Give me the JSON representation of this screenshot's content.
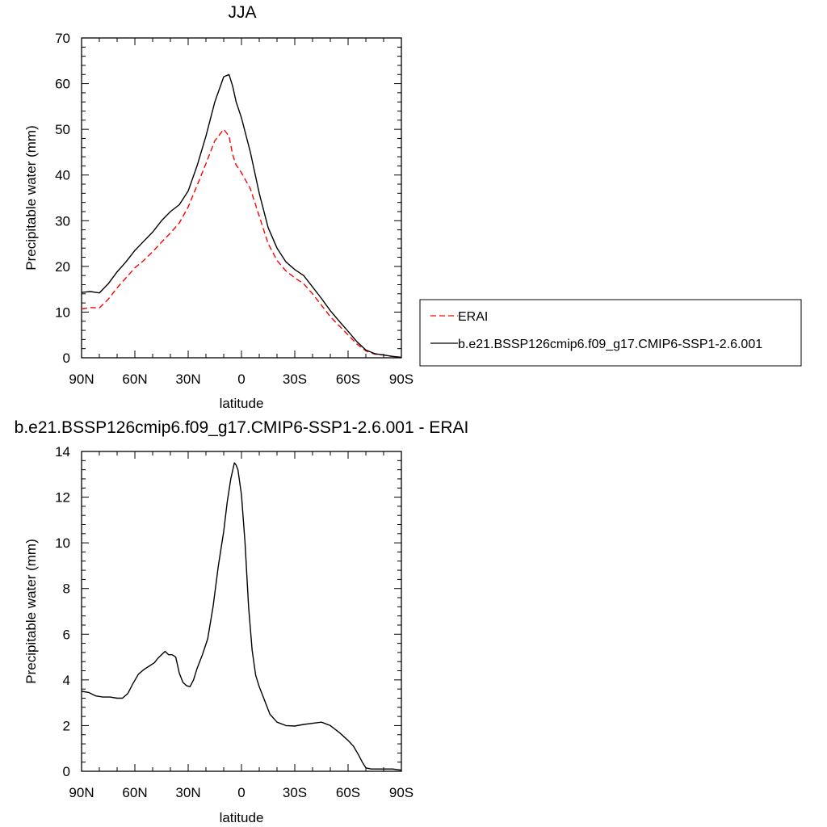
{
  "chart_data": [
    {
      "type": "line",
      "title": "JJA",
      "xlabel": "latitude",
      "ylabel": "Precipitable water (mm)",
      "xlim": [
        90,
        -90
      ],
      "ylim": [
        0,
        70
      ],
      "x_ticks": [
        90,
        60,
        30,
        0,
        -30,
        -60,
        -90
      ],
      "x_tick_labels": [
        "90N",
        "60N",
        "30N",
        "0",
        "30S",
        "60S",
        "90S"
      ],
      "y_ticks": [
        0,
        10,
        20,
        30,
        40,
        50,
        60,
        70
      ],
      "y_tick_labels": [
        "0",
        "10",
        "20",
        "30",
        "40",
        "50",
        "60",
        "70"
      ],
      "grid": false,
      "legend": {
        "position": "right",
        "entries": [
          {
            "name": "ERAI",
            "color": "#ff0000",
            "dash": "dashed"
          },
          {
            "name": "b.e21.BSSP126cmip6.f09_g17.CMIP6-SSP1-2.6.001",
            "color": "#000000",
            "dash": "solid"
          }
        ]
      },
      "series": [
        {
          "name": "ERAI",
          "color": "#ff0000",
          "dash": "dashed",
          "x": [
            90,
            85,
            80,
            75,
            70,
            65,
            60,
            55,
            50,
            45,
            40,
            35,
            30,
            25,
            20,
            15,
            10,
            7,
            5,
            3,
            0,
            -5,
            -10,
            -15,
            -20,
            -25,
            -30,
            -35,
            -40,
            -45,
            -50,
            -55,
            -60,
            -65,
            -70,
            -75,
            -80,
            -85,
            -90
          ],
          "values": [
            10.7,
            11.0,
            10.9,
            12.8,
            15.3,
            17.5,
            19.7,
            21.3,
            23.2,
            25.3,
            27.3,
            29.5,
            33.0,
            37.7,
            42.5,
            47.5,
            50.0,
            48.5,
            44.5,
            42.2,
            40.5,
            37.0,
            31.0,
            25.0,
            21.3,
            19.0,
            17.5,
            16.2,
            14.0,
            11.5,
            9.0,
            7.0,
            5.0,
            3.0,
            1.5,
            0.8,
            0.6,
            0.3,
            0.1
          ]
        },
        {
          "name": "b.e21.BSSP126cmip6.f09_g17.CMIP6-SSP1-2.6.001",
          "color": "#000000",
          "dash": "solid",
          "x": [
            90,
            85,
            80,
            75,
            70,
            65,
            60,
            55,
            50,
            45,
            40,
            35,
            30,
            25,
            20,
            15,
            10,
            7,
            5,
            3,
            0,
            -5,
            -10,
            -15,
            -20,
            -25,
            -30,
            -35,
            -40,
            -45,
            -50,
            -55,
            -60,
            -65,
            -70,
            -75,
            -80,
            -85,
            -90
          ],
          "values": [
            14.3,
            14.5,
            14.2,
            16.2,
            18.8,
            21.0,
            23.5,
            25.5,
            27.5,
            30.0,
            32.0,
            33.5,
            36.5,
            42.0,
            48.5,
            56.0,
            61.5,
            62.0,
            59.5,
            56.0,
            52.5,
            45.0,
            36.0,
            28.5,
            24.0,
            21.0,
            19.3,
            18.0,
            15.5,
            13.0,
            10.3,
            8.0,
            5.8,
            3.5,
            1.7,
            0.9,
            0.6,
            0.3,
            0.1
          ]
        }
      ]
    },
    {
      "type": "line",
      "title": "b.e21.BSSP126cmip6.f09_g17.CMIP6-SSP1-2.6.001 - ERAI",
      "xlabel": "latitude",
      "ylabel": "Precipitable water (mm)",
      "xlim": [
        90,
        -90
      ],
      "ylim": [
        0,
        14
      ],
      "x_ticks": [
        90,
        60,
        30,
        0,
        -30,
        -60,
        -90
      ],
      "x_tick_labels": [
        "90N",
        "60N",
        "30N",
        "0",
        "30S",
        "60S",
        "90S"
      ],
      "y_ticks": [
        0,
        2,
        4,
        6,
        8,
        10,
        12,
        14
      ],
      "y_tick_labels": [
        "0",
        "2",
        "4",
        "6",
        "8",
        "10",
        "12",
        "14"
      ],
      "grid": false,
      "series": [
        {
          "color": "#000000",
          "dash": "solid",
          "x": [
            90,
            86,
            82,
            78,
            74,
            70,
            67,
            64,
            61,
            58,
            55,
            52,
            49,
            47,
            45,
            43,
            41,
            39,
            37,
            35,
            33,
            31,
            29,
            27,
            25,
            22,
            19,
            16,
            13,
            10,
            8,
            6,
            4,
            3,
            2,
            0,
            -2,
            -4,
            -6,
            -8,
            -10,
            -13,
            -16,
            -20,
            -25,
            -30,
            -35,
            -40,
            -45,
            -50,
            -55,
            -60,
            -63,
            -66,
            -68,
            -70,
            -73,
            -76,
            -80,
            -85,
            -90
          ],
          "values": [
            3.5,
            3.45,
            3.3,
            3.25,
            3.25,
            3.2,
            3.2,
            3.4,
            3.85,
            4.25,
            4.45,
            4.6,
            4.75,
            4.95,
            5.1,
            5.25,
            5.1,
            5.1,
            5.0,
            4.3,
            3.9,
            3.75,
            3.7,
            4.0,
            4.5,
            5.1,
            5.8,
            7.2,
            9.0,
            10.5,
            11.8,
            12.8,
            13.5,
            13.4,
            13.2,
            12.1,
            10.0,
            7.2,
            5.3,
            4.2,
            3.7,
            3.1,
            2.5,
            2.15,
            2.0,
            1.98,
            2.05,
            2.1,
            2.15,
            2.0,
            1.7,
            1.35,
            1.1,
            0.7,
            0.4,
            0.15,
            0.1,
            0.1,
            0.1,
            0.1,
            0.05
          ]
        }
      ]
    }
  ]
}
